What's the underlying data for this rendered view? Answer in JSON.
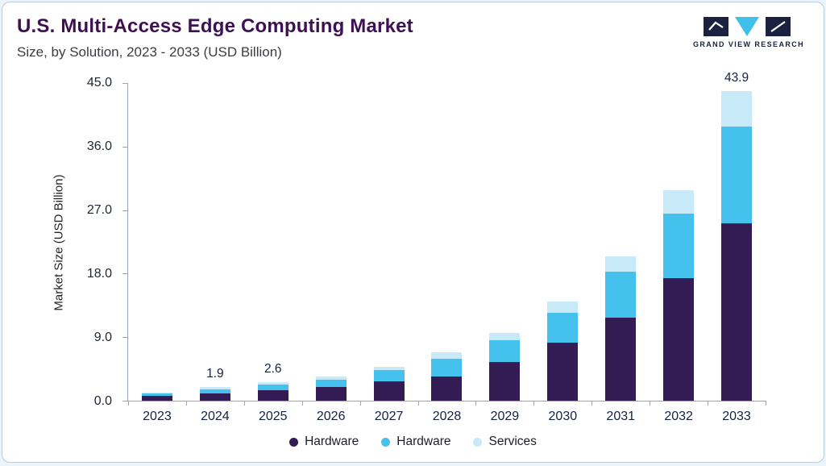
{
  "header": {
    "title": "U.S. Multi-Access Edge Computing Market",
    "subtitle": "Size, by Solution, 2023 - 2033 (USD Billion)",
    "logo_text": "GRAND VIEW RESEARCH"
  },
  "brand": {
    "navy": "#1b2240",
    "cyan": "#3ec0ea",
    "title_purple": "#3e1053"
  },
  "chart_data": {
    "type": "bar",
    "stacked": true,
    "title": "U.S. Multi-Access Edge Computing Market",
    "subtitle": "Size, by Solution, 2023 - 2033 (USD Billion)",
    "categories": [
      "2023",
      "2024",
      "2025",
      "2026",
      "2027",
      "2028",
      "2029",
      "2030",
      "2031",
      "2032",
      "2033"
    ],
    "series": [
      {
        "name": "Hardware",
        "color": "#331c54",
        "values": [
          0.7,
          1.05,
          1.45,
          1.9,
          2.7,
          3.4,
          5.5,
          8.2,
          11.8,
          17.4,
          25.1
        ]
      },
      {
        "name": "Hardware",
        "color": "#45c1ed",
        "values": [
          0.35,
          0.6,
          0.85,
          1.1,
          1.6,
          2.5,
          3.1,
          4.2,
          6.5,
          9.1,
          13.7
        ]
      },
      {
        "name": "Services",
        "color": "#c7e9f8",
        "values": [
          0.15,
          0.25,
          0.3,
          0.4,
          0.5,
          0.9,
          1.0,
          1.6,
          2.1,
          3.3,
          5.1
        ]
      }
    ],
    "totals": [
      1.2,
      1.9,
      2.6,
      3.4,
      4.8,
      6.8,
      9.6,
      14.0,
      20.4,
      29.8,
      43.9
    ],
    "bar_labels": [
      "",
      "1.9",
      "2.6",
      "",
      "",
      "",
      "",
      "",
      "",
      "",
      "43.9"
    ],
    "xlabel": "",
    "ylabel": "Market Size (USD Billion)",
    "ylim": [
      0,
      45
    ],
    "yticks": [
      0,
      9,
      18,
      27,
      36,
      45
    ],
    "ytick_labels": [
      "0.0",
      "9.0",
      "18.0",
      "27.0",
      "36.0",
      "45.0"
    ],
    "grid": false,
    "legend_position": "bottom"
  }
}
